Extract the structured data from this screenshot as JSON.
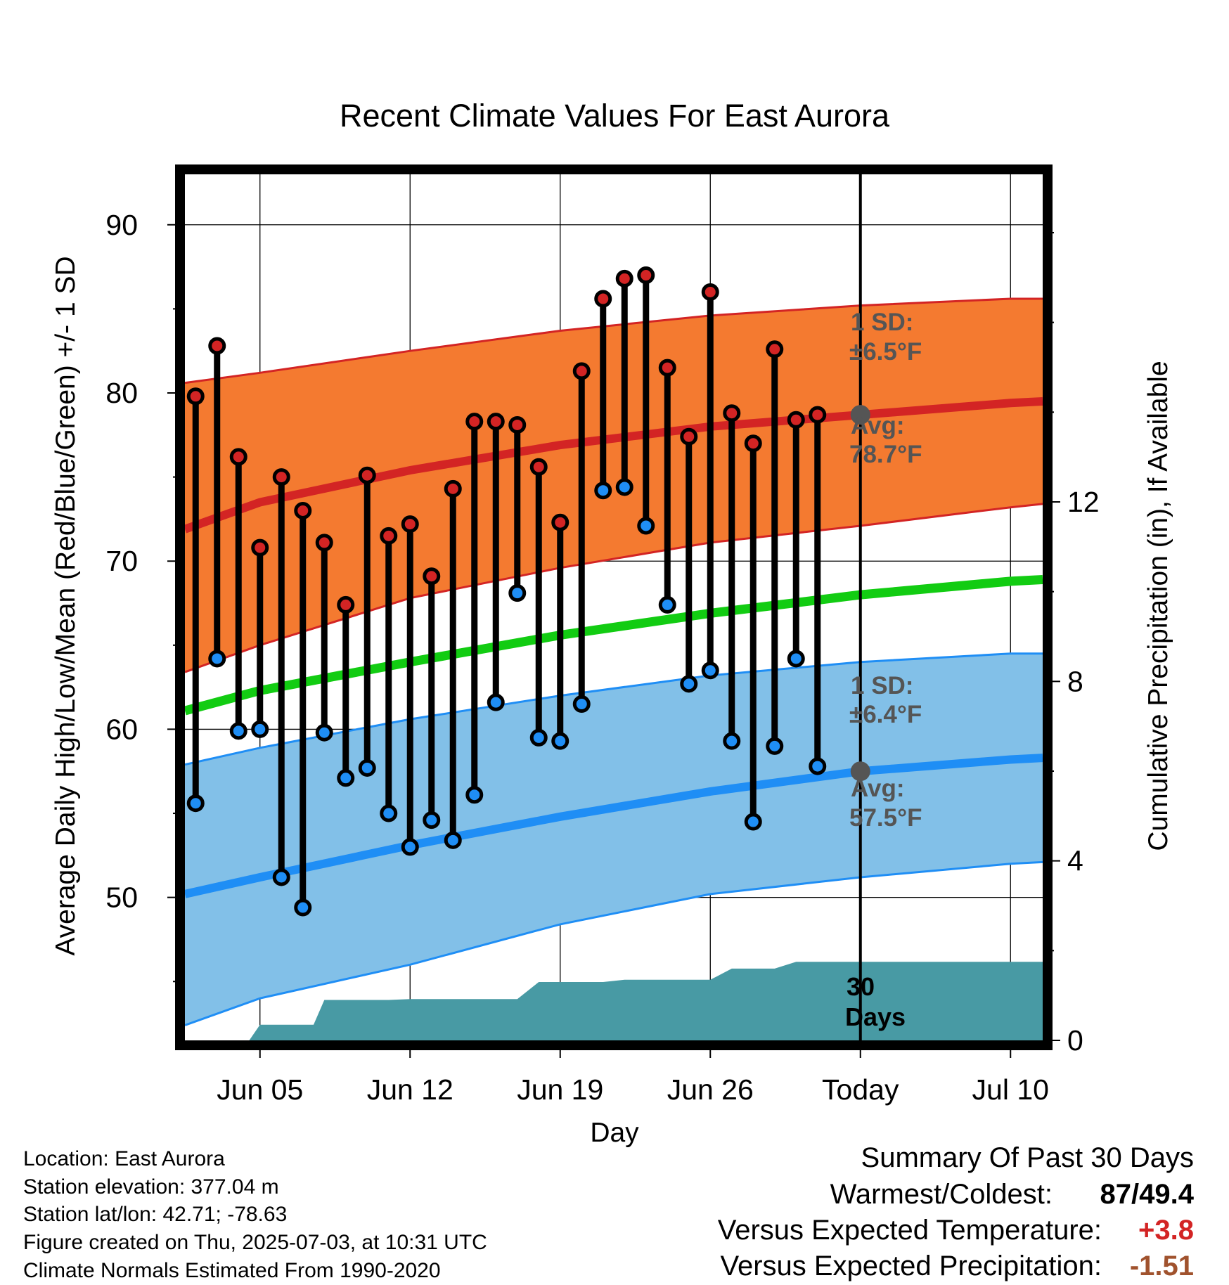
{
  "chart_data": {
    "type": "line",
    "title": "Recent Climate Values For East Aurora",
    "xlabel": "Day",
    "ylabel": "Average Daily High/Low/Mean (Red/Blue/Green) +/- 1 SD",
    "y2label": "Cumulative Precipitation (in), If Available",
    "ylim": [
      41.5,
      93
    ],
    "y2lim": [
      0,
      19.3
    ],
    "yticks": [
      50,
      60,
      70,
      80,
      90
    ],
    "y2ticks": [
      0,
      4,
      8,
      12
    ],
    "xlim": [
      1.5,
      41.5
    ],
    "xticks": [
      {
        "x": 5,
        "label": "Jun 05"
      },
      {
        "x": 12,
        "label": "Jun 12"
      },
      {
        "x": 19,
        "label": "Jun 19"
      },
      {
        "x": 26,
        "label": "Jun 26"
      },
      {
        "x": 33,
        "label": "Today"
      },
      {
        "x": 40,
        "label": "Jul 10"
      }
    ],
    "grid": true,
    "today_x": 33,
    "day_x": [
      2,
      3,
      4,
      5,
      6,
      7,
      8,
      9,
      10,
      11,
      12,
      13,
      14,
      15,
      16,
      17,
      18,
      19,
      20,
      21,
      22,
      23,
      24,
      25,
      26,
      27,
      28,
      29,
      30,
      31,
      32
    ],
    "highs": [
      79.8,
      82.8,
      76.2,
      70.8,
      75.0,
      73.0,
      71.1,
      67.4,
      75.1,
      71.5,
      72.2,
      69.1,
      74.3,
      78.3,
      78.3,
      78.1,
      75.6,
      72.3,
      81.3,
      85.6,
      86.8,
      87.0,
      81.5,
      77.4,
      86.0,
      78.8,
      77.0,
      82.6,
      78.4,
      78.7
    ],
    "lows": [
      55.6,
      64.2,
      59.9,
      60.0,
      51.2,
      49.4,
      59.8,
      57.1,
      57.7,
      55.0,
      53.0,
      54.6,
      53.4,
      56.1,
      61.6,
      68.1,
      59.5,
      59.3,
      61.5,
      74.2,
      74.4,
      72.1,
      67.4,
      62.7,
      63.5,
      59.3,
      54.5,
      59.0,
      64.2,
      57.8
    ],
    "normal_x": [
      1.5,
      5,
      12,
      19,
      26,
      33,
      40,
      41.5
    ],
    "normal_high": [
      71.9,
      73.5,
      75.4,
      76.9,
      78.0,
      78.7,
      79.4,
      79.5
    ],
    "normal_high_sd_upper": [
      80.6,
      81.2,
      82.5,
      83.7,
      84.6,
      85.2,
      85.6,
      85.6
    ],
    "normal_high_sd_lower": [
      63.4,
      65.0,
      67.8,
      69.6,
      71.1,
      72.1,
      73.2,
      73.4
    ],
    "normal_mean": [
      61.1,
      62.3,
      64.0,
      65.6,
      66.9,
      68.0,
      68.8,
      68.9
    ],
    "normal_low": [
      50.2,
      51.2,
      53.1,
      54.8,
      56.3,
      57.5,
      58.2,
      58.3
    ],
    "normal_low_sd_upper": [
      57.9,
      58.9,
      60.6,
      62.0,
      63.2,
      64.0,
      64.5,
      64.5
    ],
    "normal_low_sd_lower": [
      42.4,
      44.0,
      46.0,
      48.4,
      50.2,
      51.2,
      52.0,
      52.1
    ],
    "precip_x": [
      2,
      4.5,
      5,
      6,
      6.5,
      7,
      7.5,
      8,
      8.5,
      9,
      9.5,
      10,
      11,
      12,
      13,
      14,
      15,
      16,
      17,
      18,
      19,
      20,
      21,
      22,
      23,
      24,
      25,
      26,
      27,
      28,
      29,
      30,
      31,
      32,
      33,
      34,
      35,
      36,
      37,
      38,
      39,
      40,
      41,
      41.5
    ],
    "precip_cum": [
      0,
      0,
      0.35,
      0.35,
      0.35,
      0.35,
      0.35,
      0.9,
      0.9,
      0.9,
      0.9,
      0.9,
      0.9,
      0.92,
      0.92,
      0.92,
      0.92,
      0.92,
      0.92,
      1.3,
      1.3,
      1.3,
      1.3,
      1.35,
      1.35,
      1.35,
      1.35,
      1.35,
      1.6,
      1.6,
      1.6,
      1.75,
      1.75,
      1.75,
      1.75,
      1.75,
      1.75,
      1.75,
      1.75,
      1.75,
      1.75,
      1.75,
      1.75,
      1.75
    ],
    "annotations": {
      "high_sd_label": "1 SD:",
      "high_sd_value": "±6.5°F",
      "high_avg_label": "Avg:",
      "high_avg_value": "78.7°F",
      "low_sd_label": "1 SD:",
      "low_sd_value": "±6.4°F",
      "low_avg_label": "Avg:",
      "low_avg_value": "57.5°F",
      "precip_days_line1": "30",
      "precip_days_line2": "Days"
    }
  },
  "colors": {
    "high_band": "#f47a30",
    "high_line": "#d32424",
    "mean_line": "#12cc12",
    "low_band": "#82c0e8",
    "low_line": "#1f8ef5",
    "precip_fill": "#489aa4",
    "annotation_text": "#555555",
    "warm_value": "#d32424",
    "precip_value": "#a0522d"
  },
  "info": {
    "location": "Location: East Aurora",
    "elevation": "Station elevation: 377.04 m",
    "latlon": "Station lat/lon: 42.71; -78.63",
    "created": "Figure created on Thu, 2025-07-03, at 10:31 UTC",
    "normals": "Climate Normals Estimated From 1990-2020"
  },
  "summary": {
    "heading": "Summary Of Past 30 Days",
    "warm_cold_label": "Warmest/Coldest:",
    "warmest": "87",
    "coldest": "/49.4",
    "temp_label": "Versus Expected Temperature:",
    "temp_value": "+3.8",
    "precip_label": "Versus Expected Precipitation:",
    "precip_value": "-1.51"
  }
}
